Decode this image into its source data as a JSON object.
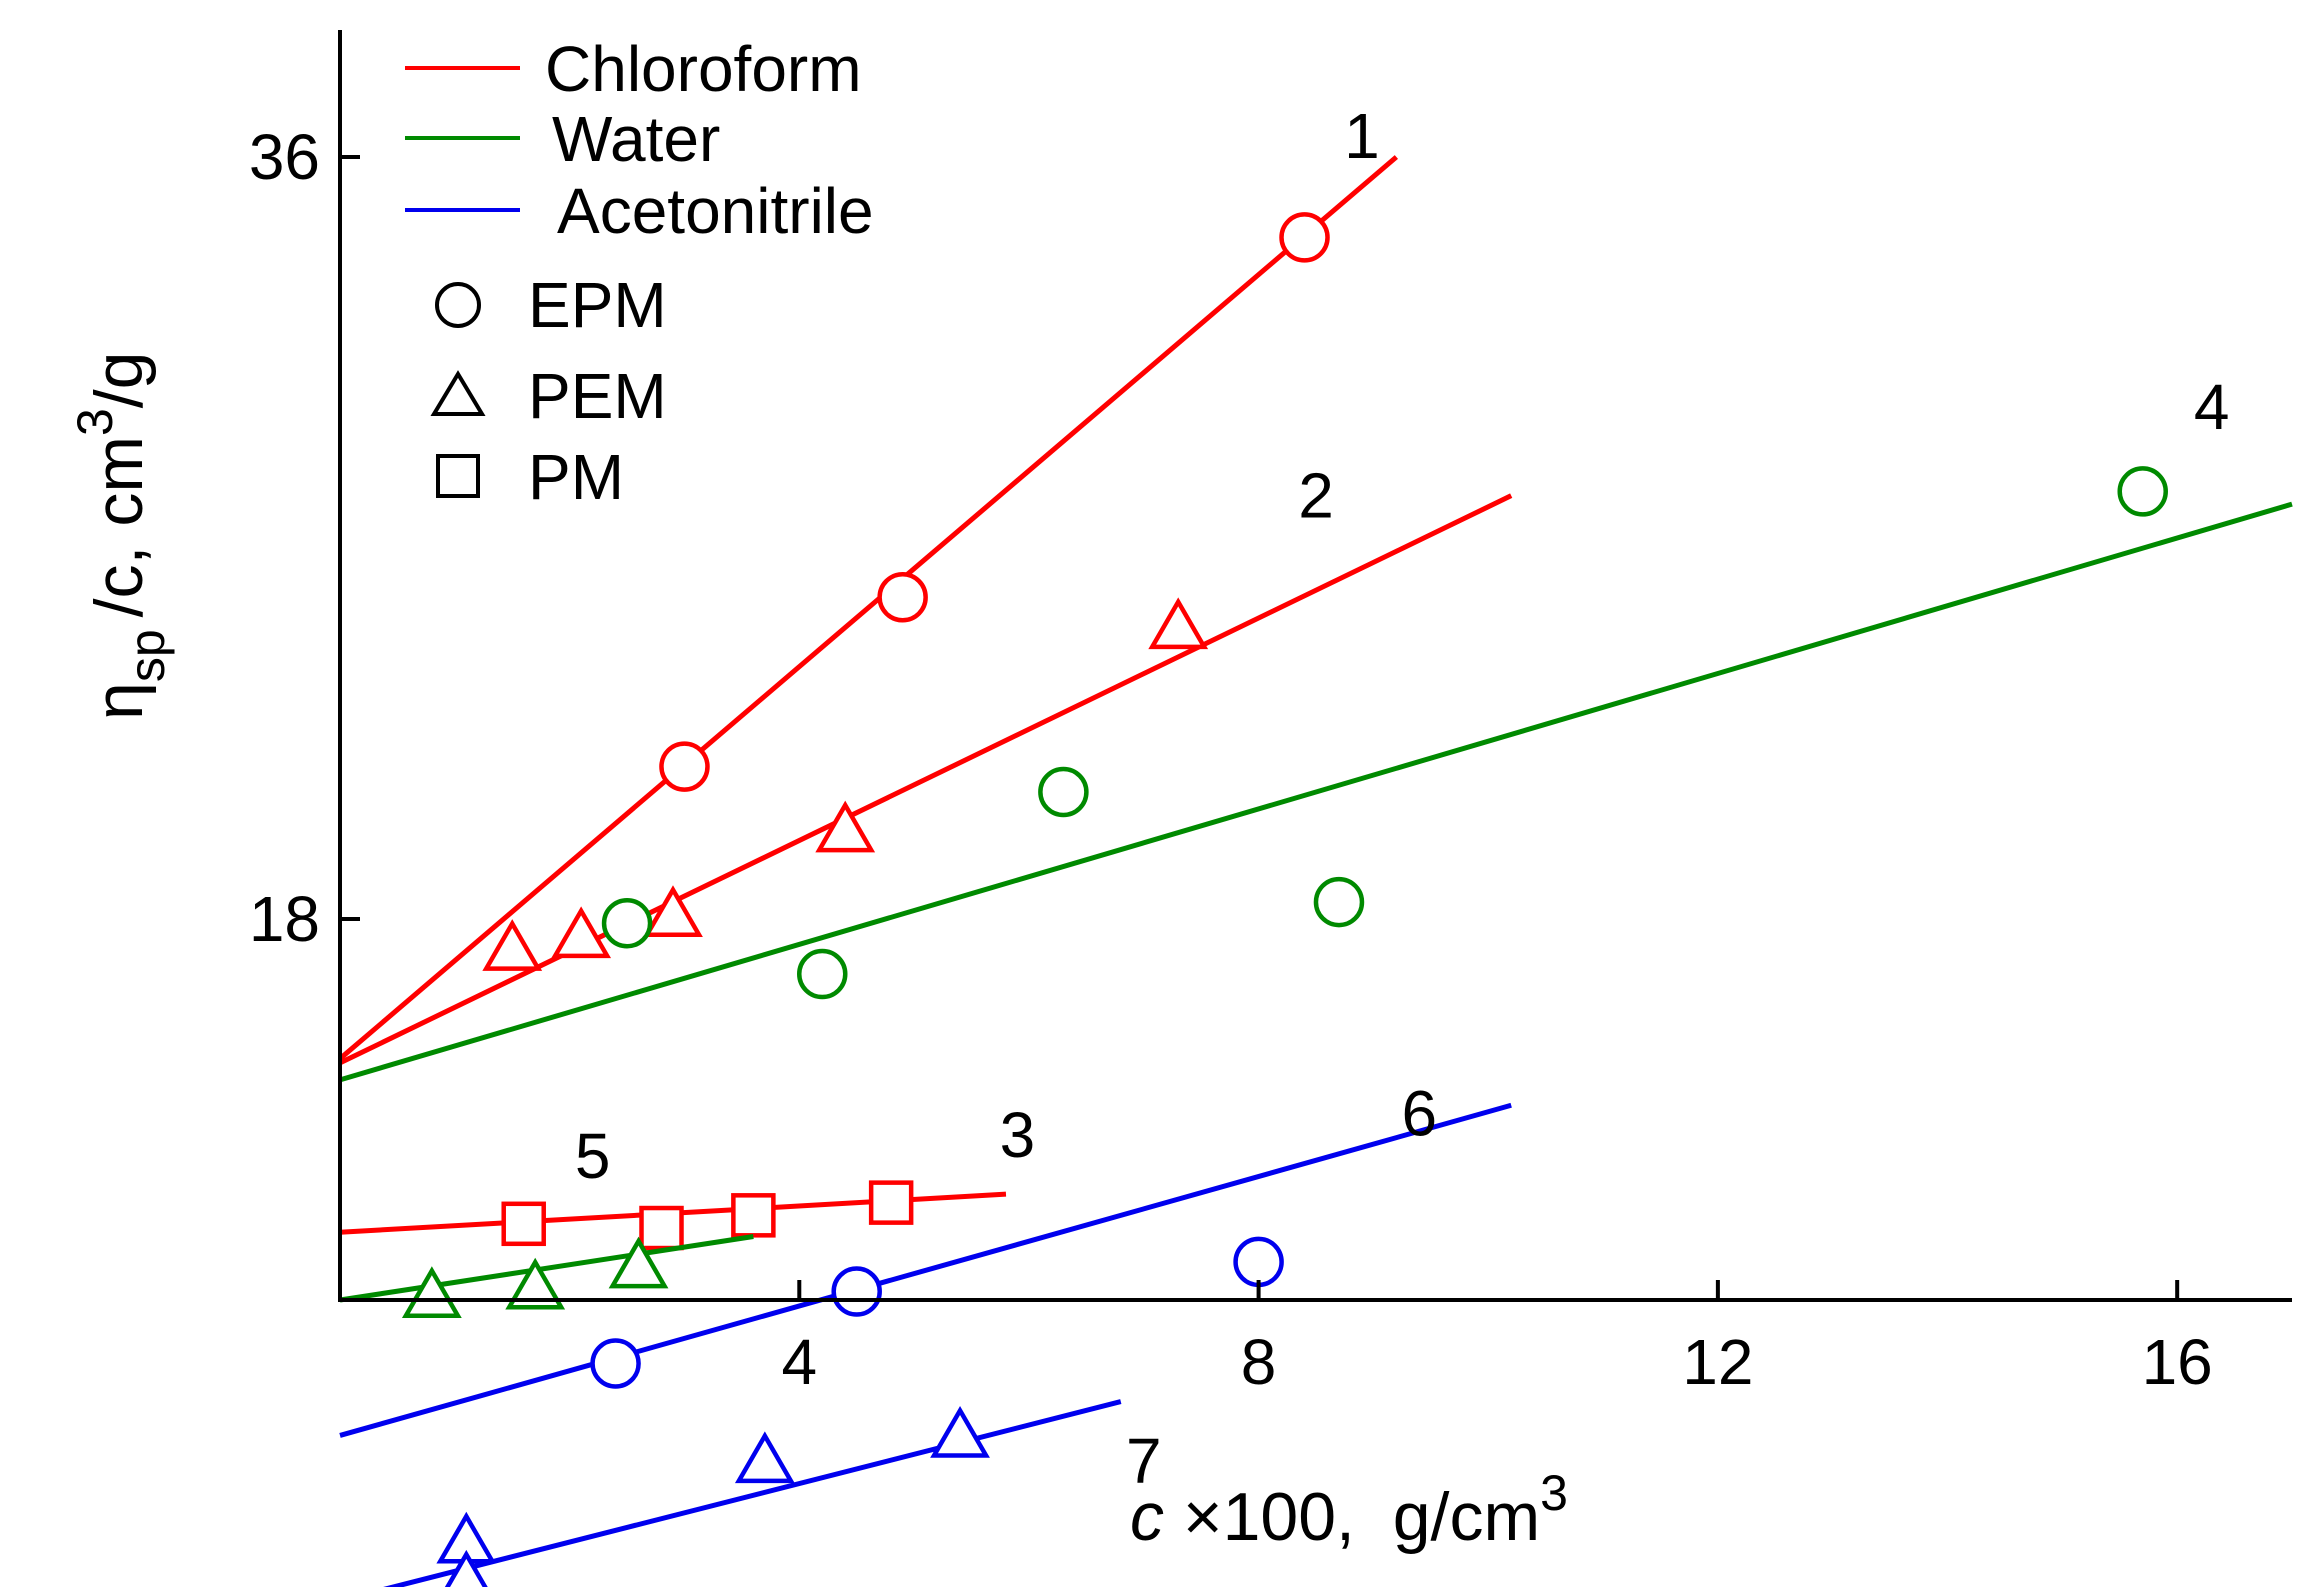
{
  "chart_data": {
    "type": "scatter",
    "title": "",
    "xlabel": {
      "symbol": "c",
      "text": " ×100,  g/cm",
      "sup": "3"
    },
    "ylabel": {
      "symbol": "η",
      "sub": "sp",
      "text": "/c, cm",
      "sup": "3",
      "tail": "/g"
    },
    "xlim": [
      0,
      17
    ],
    "ylim": [
      9,
      39
    ],
    "x_ticks": [
      4,
      8,
      12,
      16
    ],
    "x_tick_labels": [
      "4",
      "8",
      "12",
      "16"
    ],
    "y_ticks": [
      18,
      36
    ],
    "y_tick_labels": [
      "18",
      "36"
    ],
    "grid": false,
    "legend": {
      "placement": "top-left",
      "solvents": [
        {
          "name": "Chloroform",
          "color": "#ff0000"
        },
        {
          "name": "Water",
          "color": "#008a00"
        },
        {
          "name": "Acetonitrile",
          "color": "#0000ee"
        }
      ],
      "markers": [
        {
          "name": "EPM",
          "marker": "circle"
        },
        {
          "name": "PEM",
          "marker": "triangle"
        },
        {
          "name": "PM",
          "marker": "square"
        }
      ]
    },
    "series": [
      {
        "label": "1",
        "solvent": "Chloroform",
        "polymer": "EPM",
        "marker": "circle",
        "color": "#ff0000",
        "points": [
          [
            3.0,
            21.6
          ],
          [
            4.9,
            25.6
          ],
          [
            8.4,
            34.1
          ]
        ],
        "fit": {
          "x": [
            0,
            9.2
          ],
          "y": [
            14.7,
            36.0
          ]
        },
        "label_at": [
          8.9,
          36.5
        ]
      },
      {
        "label": "2",
        "solvent": "Chloroform",
        "polymer": "PEM",
        "marker": "triangle",
        "color": "#ff0000",
        "points": [
          [
            1.5,
            17.3
          ],
          [
            2.1,
            17.6
          ],
          [
            2.9,
            18.1
          ],
          [
            4.4,
            20.1
          ],
          [
            7.3,
            24.9
          ]
        ],
        "fit": {
          "x": [
            0,
            10.2
          ],
          "y": [
            14.6,
            28.0
          ]
        },
        "label_at": [
          8.5,
          28.0
        ]
      },
      {
        "label": "3",
        "solvent": "Chloroform",
        "polymer": "PM",
        "marker": "square",
        "color": "#ff0000",
        "points": [
          [
            1.6,
            10.8
          ],
          [
            2.8,
            10.7
          ],
          [
            3.6,
            11.0
          ],
          [
            4.8,
            11.3
          ]
        ],
        "fit": {
          "x": [
            0,
            5.8
          ],
          "y": [
            10.6,
            11.5
          ]
        },
        "label_at": [
          5.9,
          12.9
        ]
      },
      {
        "label": "4",
        "solvent": "Water",
        "polymer": "EPM",
        "marker": "circle",
        "color": "#008a00",
        "points": [
          [
            2.5,
            17.9
          ],
          [
            4.2,
            16.7
          ],
          [
            6.3,
            21.0
          ],
          [
            8.7,
            18.4
          ],
          [
            15.7,
            28.1
          ]
        ],
        "fit": {
          "x": [
            0,
            17
          ],
          "y": [
            14.2,
            27.8
          ]
        },
        "label_at": [
          16.3,
          30.1
        ]
      },
      {
        "label": "5",
        "solvent": "Water",
        "polymer": "PEM",
        "marker": "triangle",
        "color": "#008a00",
        "points": [
          [
            0.8,
            9.1
          ],
          [
            1.7,
            9.3
          ],
          [
            2.6,
            9.8
          ]
        ],
        "fit": {
          "x": [
            0,
            3.6
          ],
          "y": [
            9.0,
            10.5
          ]
        },
        "label_at": [
          2.2,
          12.4
        ]
      },
      {
        "label": "6",
        "solvent": "Acetonitrile",
        "polymer": "EPM",
        "marker": "circle",
        "color": "#0000ee",
        "points": [
          [
            2.4,
            7.5
          ],
          [
            4.5,
            9.2
          ],
          [
            8.0,
            9.9
          ]
        ],
        "fit": {
          "x": [
            0,
            10.2
          ],
          "y": [
            5.8,
            13.6
          ]
        },
        "label_at": [
          9.4,
          13.4
        ]
      },
      {
        "label": "7",
        "solvent": "Acetonitrile",
        "polymer": "PEM",
        "marker": "triangle",
        "color": "#0000ee",
        "points": [
          [
            1.1,
            3.3
          ],
          [
            1.1,
            2.4
          ],
          [
            3.7,
            5.2
          ],
          [
            5.4,
            5.8
          ]
        ],
        "fit": {
          "x": [
            0,
            6.8
          ],
          "y": [
            1.9,
            6.6
          ]
        },
        "label_at": [
          7.0,
          5.2
        ]
      }
    ]
  }
}
